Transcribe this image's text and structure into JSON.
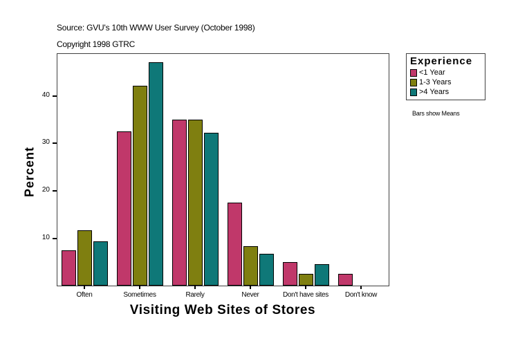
{
  "header": {
    "source": "Source: GVU's 10th WWW User Survey (October 1998)",
    "copyright": "Copyright 1998 GTRC"
  },
  "legend": {
    "title": "Experience",
    "items": [
      {
        "label": "<1 Year",
        "color": "#C0386A"
      },
      {
        "label": "1-3 Years",
        "color": "#7F7F10"
      },
      {
        "label": ">4 Years",
        "color": "#0F7878"
      }
    ]
  },
  "note": "Bars show Means",
  "chart_data": {
    "type": "bar",
    "title": "",
    "xlabel": "Visiting Web Sites of Stores",
    "ylabel": "Percent",
    "categories": [
      "Often",
      "Sometimes",
      "Rarely",
      "Never",
      "Don't have sites",
      "Don't know"
    ],
    "series": [
      {
        "name": "<1 Year",
        "color": "#C0386A",
        "values": [
          7.5,
          32.5,
          35.0,
          17.5,
          5.0,
          2.5
        ]
      },
      {
        "name": "1-3 Years",
        "color": "#7F7F10",
        "values": [
          11.7,
          42.1,
          35.0,
          8.4,
          2.5,
          0
        ]
      },
      {
        "name": ">4 Years",
        "color": "#0F7878",
        "values": [
          9.3,
          47.0,
          32.2,
          6.8,
          4.5,
          0
        ]
      }
    ],
    "yticks": [
      10,
      20,
      30,
      40
    ],
    "ylim": [
      0,
      48.7
    ],
    "grid": false,
    "legend_position": "right"
  }
}
